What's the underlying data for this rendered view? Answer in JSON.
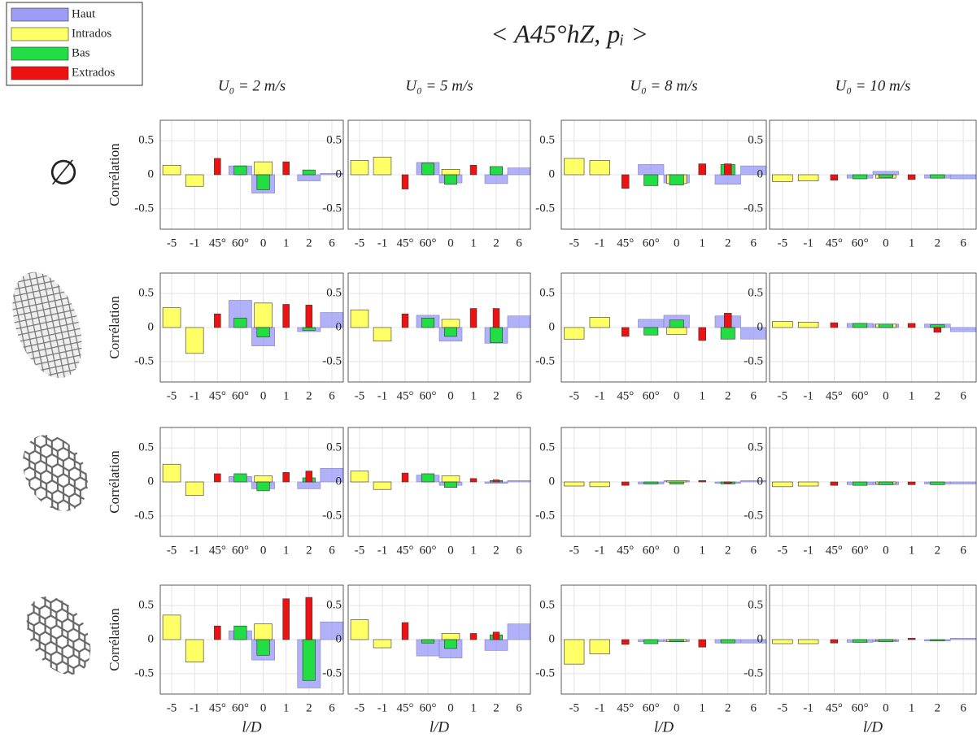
{
  "title": "< A45°hZ, pᵢ >",
  "legend": [
    {
      "name": "Haut",
      "color": "#9d9df7"
    },
    {
      "name": "Intrados",
      "color": "#ffff66"
    },
    {
      "name": "Bas",
      "color": "#22dd44"
    },
    {
      "name": "Extrados",
      "color": "#ee1111"
    }
  ],
  "column_titles": [
    "U₀ = 2 m/s",
    "U₀ = 5 m/s",
    "U₀ = 8 m/s",
    "U₀ = 10 m/s"
  ],
  "row_labels": [
    "∅"
  ],
  "chart_data": [
    {
      "type": "bar",
      "ylabel": "Corrélation",
      "categories": [
        "-5",
        "-1",
        "45°",
        "60°",
        "0",
        "1",
        "2",
        "6"
      ],
      "ylim": [
        -0.8,
        0.8
      ],
      "yticks": [
        0.5,
        0,
        -0.5
      ],
      "grid": true,
      "series": [
        {
          "values": [
            null,
            null,
            null,
            0.13,
            -0.27,
            null,
            -0.09,
            0.02
          ]
        },
        {
          "values": [
            0.14,
            -0.17,
            null,
            null,
            0.19,
            null,
            null,
            null
          ]
        },
        {
          "values": [
            null,
            null,
            null,
            0.13,
            -0.22,
            null,
            0.07,
            null
          ]
        },
        {
          "values": [
            null,
            null,
            0.24,
            null,
            null,
            0.19,
            null,
            null
          ]
        }
      ]
    },
    {
      "type": "bar",
      "categories": [
        "-5",
        "-1",
        "45°",
        "60°",
        "0",
        "1",
        "2",
        "6"
      ],
      "ylim": [
        -0.8,
        0.8
      ],
      "yticks": [
        0.5,
        0,
        -0.5
      ],
      "grid": true,
      "series": [
        {
          "values": [
            null,
            null,
            null,
            0.18,
            -0.12,
            null,
            -0.13,
            0.1
          ]
        },
        {
          "values": [
            0.21,
            0.26,
            null,
            null,
            0.08,
            null,
            null,
            null
          ]
        },
        {
          "values": [
            null,
            null,
            null,
            0.17,
            -0.14,
            null,
            0.12,
            null
          ]
        },
        {
          "values": [
            null,
            null,
            -0.21,
            null,
            null,
            0.14,
            null,
            null
          ]
        }
      ]
    },
    {
      "type": "bar",
      "categories": [
        "-5",
        "-1",
        "45°",
        "60°",
        "0",
        "1",
        "2",
        "6"
      ],
      "ylim": [
        -0.8,
        0.8
      ],
      "yticks": [
        0.5,
        0,
        -0.5
      ],
      "grid": true,
      "series": [
        {
          "values": [
            null,
            null,
            null,
            0.15,
            -0.12,
            null,
            -0.14,
            0.13
          ]
        },
        {
          "values": [
            0.24,
            0.21,
            null,
            null,
            -0.13,
            null,
            null,
            null
          ]
        },
        {
          "values": [
            null,
            null,
            null,
            -0.16,
            -0.15,
            null,
            0.15,
            null
          ]
        },
        {
          "values": [
            null,
            null,
            -0.2,
            null,
            null,
            0.16,
            0.16,
            null
          ]
        }
      ]
    },
    {
      "type": "bar",
      "categories": [
        "-5",
        "-1",
        "45°",
        "60°",
        "0",
        "1",
        "2",
        "6"
      ],
      "ylim": [
        -0.8,
        0.8
      ],
      "yticks": [
        0.5,
        0,
        -0.5
      ],
      "grid": true,
      "series": [
        {
          "values": [
            null,
            null,
            null,
            -0.05,
            0.05,
            null,
            -0.05,
            -0.06
          ]
        },
        {
          "values": [
            -0.1,
            -0.09,
            null,
            null,
            -0.05,
            null,
            null,
            null
          ]
        },
        {
          "values": [
            null,
            null,
            null,
            -0.06,
            -0.04,
            null,
            -0.05,
            null
          ]
        },
        {
          "values": [
            null,
            null,
            -0.08,
            null,
            null,
            -0.07,
            null,
            null
          ]
        }
      ]
    },
    {
      "type": "bar",
      "ylabel": "Corrélation",
      "categories": [
        "-5",
        "-1",
        "45°",
        "60°",
        "0",
        "1",
        "2",
        "6"
      ],
      "ylim": [
        -0.8,
        0.8
      ],
      "yticks": [
        0.5,
        0,
        -0.5
      ],
      "grid": true,
      "series": [
        {
          "values": [
            null,
            null,
            null,
            0.4,
            -0.27,
            null,
            -0.06,
            0.22
          ]
        },
        {
          "values": [
            0.29,
            -0.38,
            null,
            null,
            0.36,
            null,
            null,
            null
          ]
        },
        {
          "values": [
            null,
            null,
            null,
            0.14,
            -0.14,
            null,
            -0.04,
            null
          ]
        },
        {
          "values": [
            null,
            null,
            0.2,
            null,
            null,
            0.34,
            0.33,
            null
          ]
        }
      ]
    },
    {
      "type": "bar",
      "categories": [
        "-5",
        "-1",
        "45°",
        "60°",
        "0",
        "1",
        "2",
        "6"
      ],
      "ylim": [
        -0.8,
        0.8
      ],
      "yticks": [
        0.5,
        0,
        -0.5
      ],
      "grid": true,
      "series": [
        {
          "values": [
            null,
            null,
            null,
            0.18,
            -0.2,
            null,
            -0.23,
            0.17
          ]
        },
        {
          "values": [
            0.26,
            -0.2,
            null,
            null,
            0.12,
            null,
            null,
            null
          ]
        },
        {
          "values": [
            null,
            null,
            null,
            0.14,
            -0.13,
            null,
            -0.22,
            null
          ]
        },
        {
          "values": [
            null,
            null,
            0.2,
            null,
            null,
            0.28,
            0.28,
            null
          ]
        }
      ]
    },
    {
      "type": "bar",
      "categories": [
        "-5",
        "-1",
        "45°",
        "60°",
        "0",
        "1",
        "2",
        "6"
      ],
      "ylim": [
        -0.8,
        0.8
      ],
      "yticks": [
        0.5,
        0,
        -0.5
      ],
      "grid": true,
      "series": [
        {
          "values": [
            null,
            null,
            null,
            0.12,
            0.18,
            null,
            0.17,
            -0.17
          ]
        },
        {
          "values": [
            -0.17,
            0.15,
            null,
            null,
            -0.1,
            null,
            null,
            null
          ]
        },
        {
          "values": [
            null,
            null,
            null,
            -0.11,
            0.11,
            null,
            -0.17,
            null
          ]
        },
        {
          "values": [
            null,
            null,
            -0.13,
            null,
            null,
            -0.19,
            0.21,
            null
          ]
        }
      ]
    },
    {
      "type": "bar",
      "categories": [
        "-5",
        "-1",
        "45°",
        "60°",
        "0",
        "1",
        "2",
        "6"
      ],
      "ylim": [
        -0.8,
        0.8
      ],
      "yticks": [
        0.5,
        0,
        -0.5
      ],
      "grid": true,
      "series": [
        {
          "values": [
            null,
            null,
            null,
            0.06,
            0.05,
            null,
            0.05,
            -0.06
          ]
        },
        {
          "values": [
            0.09,
            0.08,
            null,
            null,
            0.05,
            null,
            null,
            null
          ]
        },
        {
          "values": [
            null,
            null,
            null,
            0.06,
            0.05,
            null,
            0.04,
            null
          ]
        },
        {
          "values": [
            null,
            null,
            0.07,
            null,
            null,
            0.06,
            -0.07,
            null
          ]
        }
      ]
    },
    {
      "type": "bar",
      "ylabel": "Corrélation",
      "categories": [
        "-5",
        "-1",
        "45°",
        "60°",
        "0",
        "1",
        "2",
        "6"
      ],
      "ylim": [
        -0.8,
        0.8
      ],
      "yticks": [
        0.5,
        0,
        -0.5
      ],
      "grid": true,
      "series": [
        {
          "values": [
            null,
            null,
            null,
            0.08,
            -0.1,
            null,
            -0.1,
            0.2
          ]
        },
        {
          "values": [
            0.26,
            -0.2,
            null,
            null,
            0.09,
            null,
            null,
            null
          ]
        },
        {
          "values": [
            null,
            null,
            null,
            0.12,
            -0.13,
            null,
            0.06,
            null
          ]
        },
        {
          "values": [
            null,
            null,
            0.12,
            null,
            null,
            0.14,
            0.16,
            null
          ]
        }
      ]
    },
    {
      "type": "bar",
      "categories": [
        "-5",
        "-1",
        "45°",
        "60°",
        "0",
        "1",
        "2",
        "6"
      ],
      "ylim": [
        -0.8,
        0.8
      ],
      "yticks": [
        0.5,
        0,
        -0.5
      ],
      "grid": true,
      "series": [
        {
          "values": [
            null,
            null,
            null,
            0.1,
            -0.05,
            null,
            -0.02,
            0.02
          ]
        },
        {
          "values": [
            0.16,
            -0.11,
            null,
            null,
            0.09,
            null,
            null,
            null
          ]
        },
        {
          "values": [
            null,
            null,
            null,
            0.12,
            -0.08,
            null,
            0.02,
            null
          ]
        },
        {
          "values": [
            null,
            null,
            0.13,
            null,
            null,
            0.05,
            0.03,
            null
          ]
        }
      ]
    },
    {
      "type": "bar",
      "categories": [
        "-5",
        "-1",
        "45°",
        "60°",
        "0",
        "1",
        "2",
        "6"
      ],
      "ylim": [
        -0.8,
        0.8
      ],
      "yticks": [
        0.5,
        0,
        -0.5
      ],
      "grid": true,
      "series": [
        {
          "values": [
            null,
            null,
            null,
            -0.03,
            0.02,
            null,
            -0.02,
            0.02
          ]
        },
        {
          "values": [
            -0.06,
            -0.07,
            null,
            null,
            0.02,
            null,
            null,
            null
          ]
        },
        {
          "values": [
            null,
            null,
            null,
            -0.03,
            -0.03,
            null,
            -0.03,
            null
          ]
        },
        {
          "values": [
            null,
            null,
            -0.05,
            null,
            null,
            0.02,
            -0.02,
            null
          ]
        }
      ]
    },
    {
      "type": "bar",
      "categories": [
        "-5",
        "-1",
        "45°",
        "60°",
        "0",
        "1",
        "2",
        "6"
      ],
      "ylim": [
        -0.8,
        0.8
      ],
      "yticks": [
        0.5,
        0,
        -0.5
      ],
      "grid": true,
      "series": [
        {
          "values": [
            null,
            null,
            null,
            -0.04,
            -0.04,
            null,
            -0.03,
            -0.03
          ]
        },
        {
          "values": [
            -0.07,
            -0.06,
            null,
            null,
            -0.03,
            null,
            null,
            null
          ]
        },
        {
          "values": [
            null,
            null,
            null,
            -0.05,
            -0.04,
            null,
            -0.04,
            null
          ]
        },
        {
          "values": [
            null,
            null,
            -0.05,
            null,
            null,
            -0.04,
            null,
            null
          ]
        }
      ]
    },
    {
      "type": "bar",
      "ylabel": "Corrélation",
      "xlabel": "l/D",
      "categories": [
        "-5",
        "-1",
        "45°",
        "60°",
        "0",
        "1",
        "2",
        "6"
      ],
      "ylim": [
        -0.8,
        0.8
      ],
      "yticks": [
        0.5,
        0,
        -0.5
      ],
      "grid": true,
      "series": [
        {
          "values": [
            null,
            null,
            null,
            0.13,
            -0.3,
            null,
            -0.71,
            0.26
          ]
        },
        {
          "values": [
            0.36,
            -0.33,
            null,
            null,
            0.23,
            null,
            null,
            null
          ]
        },
        {
          "values": [
            null,
            null,
            null,
            0.2,
            -0.23,
            null,
            -0.6,
            null
          ]
        },
        {
          "values": [
            null,
            null,
            0.2,
            null,
            null,
            0.6,
            0.62,
            null
          ]
        }
      ]
    },
    {
      "type": "bar",
      "xlabel": "l/D",
      "categories": [
        "-5",
        "-1",
        "45°",
        "60°",
        "0",
        "1",
        "2",
        "6"
      ],
      "ylim": [
        -0.8,
        0.8
      ],
      "yticks": [
        0.5,
        0,
        -0.5
      ],
      "grid": true,
      "series": [
        {
          "values": [
            null,
            null,
            null,
            -0.24,
            -0.27,
            null,
            -0.16,
            0.23
          ]
        },
        {
          "values": [
            0.29,
            -0.12,
            null,
            null,
            0.09,
            null,
            null,
            null
          ]
        },
        {
          "values": [
            null,
            null,
            null,
            -0.05,
            -0.13,
            null,
            0.07,
            null
          ]
        },
        {
          "values": [
            null,
            null,
            0.25,
            null,
            null,
            0.09,
            0.11,
            null
          ]
        }
      ]
    },
    {
      "type": "bar",
      "xlabel": "l/D",
      "categories": [
        "-5",
        "-1",
        "45°",
        "60°",
        "0",
        "1",
        "2",
        "6"
      ],
      "ylim": [
        -0.8,
        0.8
      ],
      "yticks": [
        0.5,
        0,
        -0.5
      ],
      "grid": true,
      "series": [
        {
          "values": [
            null,
            null,
            null,
            -0.03,
            -0.03,
            null,
            -0.05,
            -0.05
          ]
        },
        {
          "values": [
            -0.36,
            -0.21,
            null,
            null,
            -0.03,
            null,
            null,
            null
          ]
        },
        {
          "values": [
            null,
            null,
            null,
            -0.06,
            -0.03,
            null,
            -0.05,
            null
          ]
        },
        {
          "values": [
            null,
            null,
            -0.07,
            null,
            null,
            -0.11,
            null,
            null
          ]
        }
      ]
    },
    {
      "type": "bar",
      "xlabel": "l/D",
      "categories": [
        "-5",
        "-1",
        "45°",
        "60°",
        "0",
        "1",
        "2",
        "6"
      ],
      "ylim": [
        -0.8,
        0.8
      ],
      "yticks": [
        0.5,
        0,
        -0.5
      ],
      "grid": true,
      "series": [
        {
          "values": [
            null,
            null,
            null,
            -0.04,
            -0.03,
            null,
            -0.02,
            0.02
          ]
        },
        {
          "values": [
            -0.06,
            -0.06,
            null,
            null,
            -0.02,
            null,
            null,
            null
          ]
        },
        {
          "values": [
            null,
            null,
            null,
            -0.04,
            -0.03,
            null,
            -0.02,
            null
          ]
        },
        {
          "values": [
            null,
            null,
            -0.05,
            null,
            null,
            0.02,
            null,
            null
          ]
        }
      ]
    }
  ]
}
